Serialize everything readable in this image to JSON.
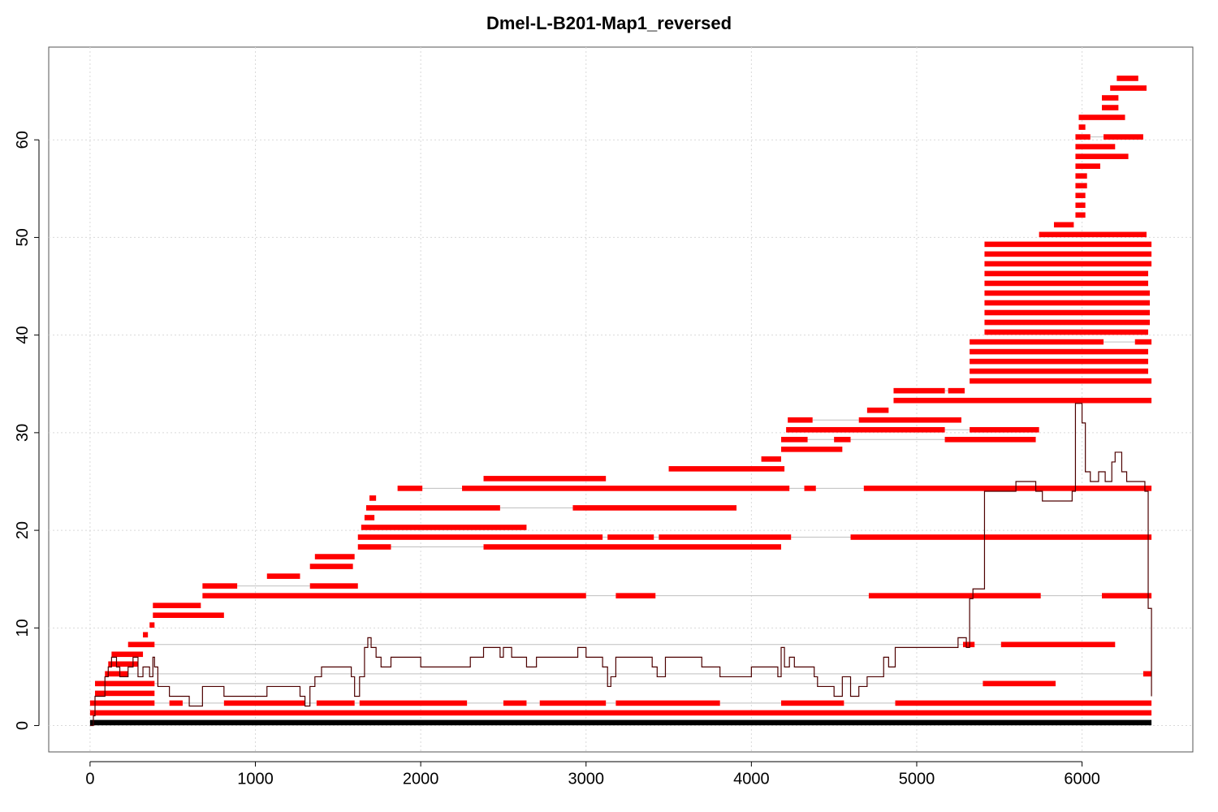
{
  "chart_data": {
    "type": "line",
    "title": "Dmel-L-B201-Map1_reversed",
    "xlabel": "",
    "ylabel": "",
    "xlim": [
      -250,
      6670
    ],
    "ylim": [
      -2.7,
      69.5
    ],
    "x_ticks": [
      0,
      1000,
      2000,
      3000,
      4000,
      5000,
      6000
    ],
    "y_ticks": [
      0,
      10,
      20,
      30,
      40,
      50,
      60
    ],
    "grid": true,
    "legend": "none",
    "colors": {
      "segment": "#ff0000",
      "coverage": "#4d0000",
      "reference": "#000000",
      "link": "#bfbfbf",
      "grid": "#d9d9d9"
    },
    "reference_bar": {
      "y": 0.3,
      "x": [
        0,
        6420
      ]
    },
    "segments": [
      {
        "y": 1.3,
        "x": [
          0,
          6420
        ]
      },
      {
        "y": 2.3,
        "x": [
          0,
          390
        ]
      },
      {
        "y": 2.3,
        "x": [
          480,
          560
        ]
      },
      {
        "y": 2.3,
        "x": [
          810,
          1300
        ]
      },
      {
        "y": 2.3,
        "x": [
          1370,
          1600
        ]
      },
      {
        "y": 2.3,
        "x": [
          1630,
          2280
        ]
      },
      {
        "y": 2.3,
        "x": [
          2500,
          2640
        ]
      },
      {
        "y": 2.3,
        "x": [
          2720,
          3120
        ]
      },
      {
        "y": 2.3,
        "x": [
          3180,
          3810
        ]
      },
      {
        "y": 2.3,
        "x": [
          4180,
          4560
        ]
      },
      {
        "y": 2.3,
        "x": [
          4870,
          6420
        ]
      },
      {
        "y": 3.3,
        "x": [
          30,
          390
        ]
      },
      {
        "y": 4.3,
        "x": [
          30,
          390
        ]
      },
      {
        "y": 4.3,
        "x": [
          5400,
          5840
        ]
      },
      {
        "y": 5.3,
        "x": [
          90,
          230
        ]
      },
      {
        "y": 5.3,
        "x": [
          6370,
          6420
        ]
      },
      {
        "y": 6.3,
        "x": [
          110,
          290
        ]
      },
      {
        "y": 7.3,
        "x": [
          130,
          320
        ]
      },
      {
        "y": 8.3,
        "x": [
          230,
          390
        ]
      },
      {
        "y": 8.3,
        "x": [
          5280,
          5350
        ]
      },
      {
        "y": 8.3,
        "x": [
          5510,
          6200
        ]
      },
      {
        "y": 9.3,
        "x": [
          320,
          350
        ]
      },
      {
        "y": 10.3,
        "x": [
          360,
          390
        ]
      },
      {
        "y": 11.3,
        "x": [
          380,
          810
        ]
      },
      {
        "y": 12.3,
        "x": [
          380,
          670
        ]
      },
      {
        "y": 13.3,
        "x": [
          680,
          3000
        ]
      },
      {
        "y": 13.3,
        "x": [
          3180,
          3420
        ]
      },
      {
        "y": 13.3,
        "x": [
          4710,
          5750
        ]
      },
      {
        "y": 13.3,
        "x": [
          6120,
          6420
        ]
      },
      {
        "y": 14.3,
        "x": [
          680,
          890
        ]
      },
      {
        "y": 14.3,
        "x": [
          1330,
          1620
        ]
      },
      {
        "y": 15.3,
        "x": [
          1070,
          1270
        ]
      },
      {
        "y": 16.3,
        "x": [
          1330,
          1590
        ]
      },
      {
        "y": 17.3,
        "x": [
          1360,
          1600
        ]
      },
      {
        "y": 18.3,
        "x": [
          1620,
          1820
        ]
      },
      {
        "y": 18.3,
        "x": [
          2380,
          4180
        ]
      },
      {
        "y": 19.3,
        "x": [
          1620,
          3100
        ]
      },
      {
        "y": 19.3,
        "x": [
          3130,
          3410
        ]
      },
      {
        "y": 19.3,
        "x": [
          3440,
          4240
        ]
      },
      {
        "y": 19.3,
        "x": [
          4600,
          6420
        ]
      },
      {
        "y": 20.3,
        "x": [
          1640,
          2640
        ]
      },
      {
        "y": 21.3,
        "x": [
          1660,
          1720
        ]
      },
      {
        "y": 22.3,
        "x": [
          1670,
          2480
        ]
      },
      {
        "y": 22.3,
        "x": [
          2920,
          3910
        ]
      },
      {
        "y": 23.3,
        "x": [
          1690,
          1730
        ]
      },
      {
        "y": 24.3,
        "x": [
          1860,
          2010
        ]
      },
      {
        "y": 24.3,
        "x": [
          2250,
          4230
        ]
      },
      {
        "y": 24.3,
        "x": [
          4320,
          4390
        ]
      },
      {
        "y": 24.3,
        "x": [
          4680,
          6420
        ]
      },
      {
        "y": 25.3,
        "x": [
          2380,
          3120
        ]
      },
      {
        "y": 26.3,
        "x": [
          3500,
          4200
        ]
      },
      {
        "y": 27.3,
        "x": [
          4060,
          4180
        ]
      },
      {
        "y": 28.3,
        "x": [
          4180,
          4550
        ]
      },
      {
        "y": 29.3,
        "x": [
          4180,
          4340
        ]
      },
      {
        "y": 29.3,
        "x": [
          4500,
          4600
        ]
      },
      {
        "y": 29.3,
        "x": [
          5170,
          5720
        ]
      },
      {
        "y": 30.3,
        "x": [
          4210,
          5170
        ]
      },
      {
        "y": 30.3,
        "x": [
          5320,
          5740
        ]
      },
      {
        "y": 31.3,
        "x": [
          4220,
          4370
        ]
      },
      {
        "y": 31.3,
        "x": [
          4650,
          5270
        ]
      },
      {
        "y": 32.3,
        "x": [
          4700,
          4830
        ]
      },
      {
        "y": 33.3,
        "x": [
          4860,
          6420
        ]
      },
      {
        "y": 34.3,
        "x": [
          4860,
          5170
        ]
      },
      {
        "y": 34.3,
        "x": [
          5190,
          5290
        ]
      },
      {
        "y": 35.3,
        "x": [
          5320,
          6420
        ]
      },
      {
        "y": 36.3,
        "x": [
          5320,
          6400
        ]
      },
      {
        "y": 37.3,
        "x": [
          5320,
          6400
        ]
      },
      {
        "y": 38.3,
        "x": [
          5320,
          6400
        ]
      },
      {
        "y": 39.3,
        "x": [
          5320,
          6130
        ]
      },
      {
        "y": 39.3,
        "x": [
          6320,
          6420
        ]
      },
      {
        "y": 40.3,
        "x": [
          5410,
          6400
        ]
      },
      {
        "y": 41.3,
        "x": [
          5410,
          6410
        ]
      },
      {
        "y": 42.3,
        "x": [
          5410,
          6410
        ]
      },
      {
        "y": 43.3,
        "x": [
          5410,
          6410
        ]
      },
      {
        "y": 44.3,
        "x": [
          5410,
          6410
        ]
      },
      {
        "y": 45.3,
        "x": [
          5410,
          6400
        ]
      },
      {
        "y": 46.3,
        "x": [
          5410,
          6400
        ]
      },
      {
        "y": 47.3,
        "x": [
          5410,
          6420
        ]
      },
      {
        "y": 48.3,
        "x": [
          5410,
          6420
        ]
      },
      {
        "y": 49.3,
        "x": [
          5410,
          6420
        ]
      },
      {
        "y": 50.3,
        "x": [
          5740,
          6390
        ]
      },
      {
        "y": 51.3,
        "x": [
          5830,
          5950
        ]
      },
      {
        "y": 52.3,
        "x": [
          5960,
          6020
        ]
      },
      {
        "y": 53.3,
        "x": [
          5960,
          6020
        ]
      },
      {
        "y": 54.3,
        "x": [
          5960,
          6020
        ]
      },
      {
        "y": 55.3,
        "x": [
          5960,
          6030
        ]
      },
      {
        "y": 56.3,
        "x": [
          5960,
          6030
        ]
      },
      {
        "y": 57.3,
        "x": [
          5960,
          6110
        ]
      },
      {
        "y": 58.3,
        "x": [
          5960,
          6280
        ]
      },
      {
        "y": 59.3,
        "x": [
          5960,
          6200
        ]
      },
      {
        "y": 60.3,
        "x": [
          5960,
          6050
        ]
      },
      {
        "y": 60.3,
        "x": [
          6130,
          6370
        ]
      },
      {
        "y": 61.3,
        "x": [
          5980,
          6020
        ]
      },
      {
        "y": 62.3,
        "x": [
          5980,
          6260
        ]
      },
      {
        "y": 63.3,
        "x": [
          6120,
          6220
        ]
      },
      {
        "y": 64.3,
        "x": [
          6120,
          6220
        ]
      },
      {
        "y": 65.3,
        "x": [
          6170,
          6390
        ]
      },
      {
        "y": 66.3,
        "x": [
          6210,
          6340
        ]
      }
    ],
    "coverage": {
      "x": [
        0,
        20,
        30,
        90,
        110,
        130,
        160,
        180,
        230,
        260,
        290,
        320,
        340,
        360,
        380,
        390,
        410,
        480,
        560,
        600,
        680,
        810,
        850,
        890,
        1000,
        1070,
        1200,
        1270,
        1300,
        1330,
        1360,
        1400,
        1580,
        1600,
        1630,
        1660,
        1680,
        1700,
        1730,
        1760,
        1820,
        1860,
        2000,
        2250,
        2300,
        2380,
        2480,
        2500,
        2550,
        2640,
        2700,
        2900,
        2950,
        3000,
        3100,
        3130,
        3150,
        3180,
        3250,
        3400,
        3430,
        3480,
        3700,
        3810,
        3900,
        4000,
        4100,
        4160,
        4180,
        4200,
        4230,
        4260,
        4320,
        4380,
        4400,
        4500,
        4550,
        4600,
        4650,
        4700,
        4800,
        4830,
        4870,
        5150,
        5170,
        5250,
        5300,
        5320,
        5340,
        5400,
        5410,
        5500,
        5600,
        5720,
        5760,
        5830,
        5940,
        5960,
        5980,
        6000,
        6020,
        6050,
        6100,
        6140,
        6180,
        6200,
        6240,
        6270,
        6300,
        6340,
        6380,
        6400,
        6420
      ],
      "y": [
        0,
        1,
        3,
        5,
        6,
        7,
        6,
        5,
        6,
        7,
        5,
        6,
        6,
        5,
        7,
        6,
        4,
        3,
        3,
        2,
        4,
        3,
        3,
        3,
        3,
        4,
        4,
        3,
        2,
        4,
        5,
        6,
        5,
        3,
        5,
        8,
        9,
        8,
        7,
        6,
        7,
        7,
        6,
        6,
        7,
        8,
        7,
        8,
        7,
        6,
        7,
        7,
        8,
        7,
        6,
        4,
        5,
        7,
        7,
        6,
        5,
        7,
        6,
        5,
        5,
        6,
        6,
        5,
        8,
        6,
        7,
        6,
        6,
        5,
        4,
        3,
        5,
        3,
        4,
        5,
        7,
        6,
        8,
        8,
        8,
        9,
        8,
        13,
        14,
        14,
        24,
        24,
        25,
        24,
        23,
        23,
        24,
        33,
        33,
        31,
        26,
        25,
        26,
        25,
        27,
        28,
        26,
        25,
        25,
        25,
        24,
        12,
        3
      ]
    }
  }
}
